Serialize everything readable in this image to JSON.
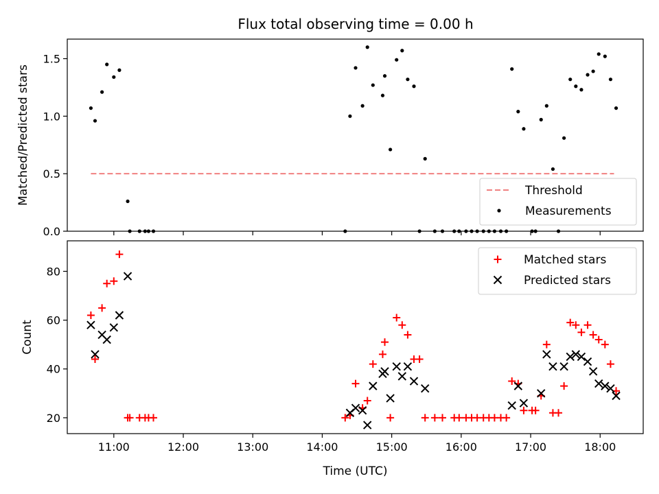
{
  "figure": {
    "title": "Flux total observing time = 0.00 h"
  },
  "chart_data": [
    {
      "type": "scatter",
      "panel": "top",
      "ylabel": "Matched/Predicted stars",
      "xlabel": "",
      "xlim": [
        10.33,
        18.62
      ],
      "ylim": [
        0,
        1.67
      ],
      "yticks": [
        0.0,
        0.5,
        1.0,
        1.5
      ],
      "yticklabels": [
        "0.0",
        "0.5",
        "1.0",
        "1.5"
      ],
      "legend_position": "lower-right",
      "series": [
        {
          "name": "Threshold",
          "kind": "line",
          "style": "dashed",
          "color": "#f08080",
          "points": [
            [
              10.67,
              0.5
            ],
            [
              18.2,
              0.5
            ]
          ]
        },
        {
          "name": "Measurements",
          "kind": "scatter",
          "marker": "dot",
          "color": "#000000",
          "points": [
            [
              10.67,
              1.07
            ],
            [
              10.73,
              0.96
            ],
            [
              10.83,
              1.21
            ],
            [
              10.9,
              1.45
            ],
            [
              11.0,
              1.34
            ],
            [
              11.08,
              1.4
            ],
            [
              11.2,
              0.26
            ],
            [
              11.23,
              0.0
            ],
            [
              11.37,
              0.0
            ],
            [
              11.45,
              0.0
            ],
            [
              11.5,
              0.0
            ],
            [
              11.57,
              0.0
            ],
            [
              14.33,
              0.0
            ],
            [
              14.4,
              1.0
            ],
            [
              14.48,
              1.42
            ],
            [
              14.58,
              1.09
            ],
            [
              14.65,
              1.6
            ],
            [
              14.73,
              1.27
            ],
            [
              14.87,
              1.18
            ],
            [
              14.9,
              1.35
            ],
            [
              14.98,
              0.71
            ],
            [
              15.07,
              1.49
            ],
            [
              15.15,
              1.57
            ],
            [
              15.23,
              1.32
            ],
            [
              15.32,
              1.26
            ],
            [
              15.4,
              0.0
            ],
            [
              15.48,
              0.63
            ],
            [
              15.62,
              0.0
            ],
            [
              15.73,
              0.0
            ],
            [
              15.9,
              0.0
            ],
            [
              15.97,
              0.0
            ],
            [
              16.07,
              0.0
            ],
            [
              16.15,
              0.0
            ],
            [
              16.23,
              0.0
            ],
            [
              16.32,
              0.0
            ],
            [
              16.4,
              0.0
            ],
            [
              16.48,
              0.0
            ],
            [
              16.57,
              0.0
            ],
            [
              16.65,
              0.0
            ],
            [
              16.73,
              1.41
            ],
            [
              16.82,
              1.04
            ],
            [
              16.9,
              0.89
            ],
            [
              17.02,
              0.0
            ],
            [
              17.07,
              0.0
            ],
            [
              17.15,
              0.97
            ],
            [
              17.23,
              1.09
            ],
            [
              17.32,
              0.54
            ],
            [
              17.4,
              0.0
            ],
            [
              17.48,
              0.81
            ],
            [
              17.57,
              1.32
            ],
            [
              17.65,
              1.26
            ],
            [
              17.73,
              1.23
            ],
            [
              17.82,
              1.36
            ],
            [
              17.9,
              1.39
            ],
            [
              17.98,
              1.54
            ],
            [
              18.07,
              1.52
            ],
            [
              18.15,
              1.32
            ],
            [
              18.23,
              1.07
            ]
          ]
        }
      ]
    },
    {
      "type": "scatter",
      "panel": "bottom",
      "xlabel": "Time (UTC)",
      "ylabel": "Count",
      "xlim": [
        10.33,
        18.62
      ],
      "ylim": [
        13.5,
        92.5
      ],
      "yticks": [
        20,
        40,
        60,
        80
      ],
      "yticklabels": [
        "20",
        "40",
        "60",
        "80"
      ],
      "xticks": [
        11,
        12,
        13,
        14,
        15,
        16,
        17,
        18
      ],
      "xticklabels": [
        "11:00",
        "12:00",
        "13:00",
        "14:00",
        "15:00",
        "16:00",
        "17:00",
        "18:00"
      ],
      "legend_position": "top-right",
      "series": [
        {
          "name": "Matched stars",
          "kind": "scatter",
          "marker": "plus",
          "color": "#ff0000",
          "points": [
            [
              10.67,
              62
            ],
            [
              10.73,
              44
            ],
            [
              10.83,
              65
            ],
            [
              10.9,
              75
            ],
            [
              11.0,
              76
            ],
            [
              11.08,
              87
            ],
            [
              11.2,
              20
            ],
            [
              11.23,
              20
            ],
            [
              11.37,
              20
            ],
            [
              11.45,
              20
            ],
            [
              11.5,
              20
            ],
            [
              11.57,
              20
            ],
            [
              14.33,
              20
            ],
            [
              14.4,
              21
            ],
            [
              14.48,
              34
            ],
            [
              14.58,
              24
            ],
            [
              14.65,
              27
            ],
            [
              14.73,
              42
            ],
            [
              14.87,
              46
            ],
            [
              14.9,
              51
            ],
            [
              14.98,
              20
            ],
            [
              15.07,
              61
            ],
            [
              15.15,
              58
            ],
            [
              15.23,
              54
            ],
            [
              15.32,
              44
            ],
            [
              15.4,
              44
            ],
            [
              15.48,
              20
            ],
            [
              15.62,
              20
            ],
            [
              15.73,
              20
            ],
            [
              15.9,
              20
            ],
            [
              15.97,
              20
            ],
            [
              16.07,
              20
            ],
            [
              16.15,
              20
            ],
            [
              16.23,
              20
            ],
            [
              16.32,
              20
            ],
            [
              16.4,
              20
            ],
            [
              16.48,
              20
            ],
            [
              16.57,
              20
            ],
            [
              16.65,
              20
            ],
            [
              16.73,
              35
            ],
            [
              16.82,
              34
            ],
            [
              16.9,
              23
            ],
            [
              17.02,
              23
            ],
            [
              17.07,
              23
            ],
            [
              17.15,
              29
            ],
            [
              17.23,
              50
            ],
            [
              17.32,
              22
            ],
            [
              17.4,
              22
            ],
            [
              17.48,
              33
            ],
            [
              17.57,
              59
            ],
            [
              17.65,
              58
            ],
            [
              17.73,
              55
            ],
            [
              17.82,
              58
            ],
            [
              17.9,
              54
            ],
            [
              17.98,
              52
            ],
            [
              18.07,
              50
            ],
            [
              18.15,
              42
            ],
            [
              18.23,
              31
            ]
          ]
        },
        {
          "name": "Predicted stars",
          "kind": "scatter",
          "marker": "cross",
          "color": "#000000",
          "points": [
            [
              10.67,
              58
            ],
            [
              10.73,
              46
            ],
            [
              10.83,
              54
            ],
            [
              10.9,
              52
            ],
            [
              11.0,
              57
            ],
            [
              11.08,
              62
            ],
            [
              11.2,
              78
            ],
            [
              14.4,
              22
            ],
            [
              14.48,
              24
            ],
            [
              14.58,
              23
            ],
            [
              14.65,
              17
            ],
            [
              14.73,
              33
            ],
            [
              14.87,
              38
            ],
            [
              14.9,
              39
            ],
            [
              14.98,
              28
            ],
            [
              15.07,
              41
            ],
            [
              15.15,
              37
            ],
            [
              15.23,
              41
            ],
            [
              15.32,
              35
            ],
            [
              15.48,
              32
            ],
            [
              16.73,
              25
            ],
            [
              16.82,
              33
            ],
            [
              16.9,
              26
            ],
            [
              17.15,
              30
            ],
            [
              17.23,
              46
            ],
            [
              17.32,
              41
            ],
            [
              17.48,
              41
            ],
            [
              17.57,
              45
            ],
            [
              17.65,
              46
            ],
            [
              17.73,
              45
            ],
            [
              17.82,
              43
            ],
            [
              17.9,
              39
            ],
            [
              17.98,
              34
            ],
            [
              18.07,
              33
            ],
            [
              18.15,
              32
            ],
            [
              18.23,
              29
            ]
          ]
        }
      ]
    }
  ]
}
